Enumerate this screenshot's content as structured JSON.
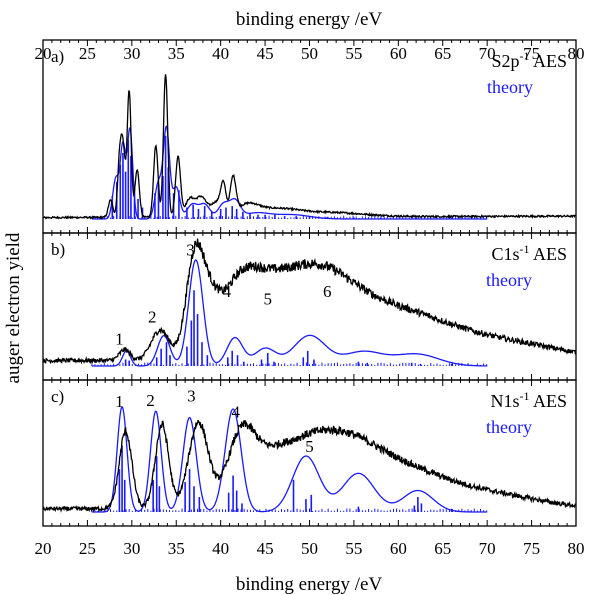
{
  "chart_data": {
    "type": "line",
    "xlabel_top": "binding energy /eV",
    "xlabel_bottom": "binding energy /eV",
    "ylabel": "auger electron yield",
    "xlim": [
      20,
      80
    ],
    "xticks": [
      "20",
      "25",
      "30",
      "35",
      "40",
      "45",
      "50",
      "55",
      "60",
      "65",
      "70",
      "75",
      "80"
    ],
    "colors": {
      "experiment": "#000000",
      "theory": "#1a1aff"
    },
    "grid": false,
    "panels": [
      {
        "label": "a)",
        "legend": {
          "main": "S2p",
          "sup": "-1",
          "suffix": " AES",
          "theory": "theory"
        },
        "ylim": [
          0,
          1.15
        ],
        "experiment": {
          "baseline": {
            "start": 0.01,
            "end": 0.02
          },
          "peaks": [
            [
              27.6,
              0.12,
              0.25
            ],
            [
              28.6,
              0.34,
              0.22
            ],
            [
              29.0,
              0.48,
              0.25
            ],
            [
              29.7,
              0.88,
              0.22
            ],
            [
              30.6,
              0.33,
              0.25
            ],
            [
              32.7,
              0.5,
              0.25
            ],
            [
              33.8,
              1.0,
              0.24
            ],
            [
              35.2,
              0.42,
              0.28
            ],
            [
              36.5,
              0.12,
              0.5
            ],
            [
              37.8,
              0.14,
              0.6
            ],
            [
              39.5,
              0.1,
              0.6
            ],
            [
              40.3,
              0.2,
              0.3
            ],
            [
              41.4,
              0.25,
              0.32
            ],
            [
              43.0,
              0.07,
              1.2
            ],
            [
              46.0,
              0.05,
              2.5
            ],
            [
              52.0,
              0.03,
              4.0
            ]
          ]
        },
        "theory_curve": {
          "range": [
            25.5,
            70
          ],
          "peaks": [
            [
              28.2,
              0.28,
              0.35
            ],
            [
              29.0,
              0.5,
              0.3
            ],
            [
              29.8,
              0.62,
              0.3
            ],
            [
              33.0,
              0.25,
              0.4
            ],
            [
              33.9,
              0.62,
              0.35
            ],
            [
              35.0,
              0.22,
              0.4
            ],
            [
              36.8,
              0.1,
              0.6
            ],
            [
              38.2,
              0.1,
              0.6
            ],
            [
              40.3,
              0.1,
              0.6
            ],
            [
              41.6,
              0.12,
              0.6
            ],
            [
              44.0,
              0.04,
              1.5
            ],
            [
              48.0,
              0.03,
              2.0
            ]
          ]
        },
        "theory_sticks": [
          [
            27.8,
            0.16
          ],
          [
            28.3,
            0.26
          ],
          [
            28.7,
            0.38
          ],
          [
            29.0,
            0.46
          ],
          [
            29.3,
            0.33
          ],
          [
            29.6,
            0.55
          ],
          [
            29.9,
            0.44
          ],
          [
            30.3,
            0.22
          ],
          [
            30.7,
            0.14
          ],
          [
            31.2,
            0.08
          ],
          [
            32.6,
            0.18
          ],
          [
            33.0,
            0.24
          ],
          [
            33.5,
            0.3
          ],
          [
            33.8,
            0.58
          ],
          [
            34.1,
            0.36
          ],
          [
            34.7,
            0.18
          ],
          [
            35.3,
            0.2
          ],
          [
            36.2,
            0.08
          ],
          [
            36.9,
            0.1
          ],
          [
            37.5,
            0.07
          ],
          [
            38.2,
            0.09
          ],
          [
            39.0,
            0.05
          ],
          [
            40.0,
            0.07
          ],
          [
            40.6,
            0.08
          ],
          [
            41.3,
            0.09
          ],
          [
            41.8,
            0.07
          ],
          [
            42.5,
            0.05
          ],
          [
            43.3,
            0.04
          ],
          [
            44.2,
            0.03
          ],
          [
            45.0,
            0.03
          ],
          [
            46.1,
            0.03
          ],
          [
            47.2,
            0.02
          ],
          [
            48.5,
            0.02
          ],
          [
            50.0,
            0.02
          ],
          [
            52.0,
            0.015
          ],
          [
            55.0,
            0.01
          ],
          [
            58.0,
            0.01
          ],
          [
            62.0,
            0.01
          ],
          [
            66.0,
            0.01
          ]
        ],
        "peak_labels": []
      },
      {
        "label": "b)",
        "legend": {
          "main": "C1s",
          "sup": "-1",
          "suffix": " AES",
          "theory": "theory"
        },
        "ylim": [
          0,
          1.1
        ],
        "experiment": {
          "baseline": {
            "start": 0.05,
            "end": 0.06
          },
          "peaks": [
            [
              29.2,
              0.1,
              0.6
            ],
            [
              33.2,
              0.28,
              1.0
            ],
            [
              37.1,
              0.92,
              1.0
            ],
            [
              38.8,
              0.3,
              1.0
            ],
            [
              41.6,
              0.46,
              2.2
            ],
            [
              44.5,
              0.44,
              2.8
            ],
            [
              48.5,
              0.38,
              3.2
            ],
            [
              52.0,
              0.45,
              3.5
            ],
            [
              57.0,
              0.32,
              4.5
            ],
            [
              63.0,
              0.22,
              5.0
            ],
            [
              70.0,
              0.12,
              6.0
            ],
            [
              76.0,
              0.05,
              5.0
            ]
          ]
        },
        "theory_curve": {
          "range": [
            25.5,
            70
          ],
          "peaks": [
            [
              29.4,
              0.14,
              0.45
            ],
            [
              33.6,
              0.28,
              0.7
            ],
            [
              37.2,
              0.98,
              0.8
            ],
            [
              41.6,
              0.26,
              0.9
            ],
            [
              45.0,
              0.16,
              1.2
            ],
            [
              50.0,
              0.28,
              1.8
            ],
            [
              56.0,
              0.13,
              2.2
            ],
            [
              62.0,
              0.11,
              2.5
            ]
          ]
        },
        "theory_sticks": [
          [
            29.3,
            0.06
          ],
          [
            29.7,
            0.05
          ],
          [
            32.8,
            0.08
          ],
          [
            33.3,
            0.16
          ],
          [
            33.9,
            0.22
          ],
          [
            34.3,
            0.1
          ],
          [
            36.2,
            0.18
          ],
          [
            36.7,
            0.42
          ],
          [
            37.0,
            0.7
          ],
          [
            37.4,
            0.48
          ],
          [
            37.9,
            0.22
          ],
          [
            38.5,
            0.1
          ],
          [
            40.8,
            0.08
          ],
          [
            41.3,
            0.14
          ],
          [
            41.9,
            0.1
          ],
          [
            42.6,
            0.04
          ],
          [
            44.6,
            0.06
          ],
          [
            45.3,
            0.12
          ],
          [
            46.0,
            0.04
          ],
          [
            49.3,
            0.08
          ],
          [
            49.8,
            0.14
          ],
          [
            50.5,
            0.06
          ],
          [
            55.5,
            0.04
          ],
          [
            56.5,
            0.03
          ],
          [
            61.5,
            0.03
          ],
          [
            62.5,
            0.02
          ],
          [
            66.0,
            0.02
          ]
        ],
        "peak_labels": [
          {
            "text": "1",
            "x": 28.6,
            "y": 0.2
          },
          {
            "text": "2",
            "x": 32.3,
            "y": 0.4
          },
          {
            "text": "3",
            "x": 36.6,
            "y": 1.02
          },
          {
            "text": "4",
            "x": 40.7,
            "y": 0.64
          },
          {
            "text": "5",
            "x": 45.3,
            "y": 0.57
          },
          {
            "text": "6",
            "x": 52.0,
            "y": 0.64
          }
        ]
      },
      {
        "label": "c)",
        "legend": {
          "main": "N1s",
          "sup": "-1",
          "suffix": " AES",
          "theory": "theory"
        },
        "ylim": [
          0,
          1.1
        ],
        "experiment": {
          "baseline": {
            "start": 0.03,
            "end": 0.04
          },
          "peaks": [
            [
              29.3,
              0.72,
              0.7
            ],
            [
              33.4,
              0.78,
              0.75
            ],
            [
              37.5,
              0.8,
              1.1
            ],
            [
              42.3,
              0.66,
              1.6
            ],
            [
              45.5,
              0.32,
              2.0
            ],
            [
              49.0,
              0.4,
              2.6
            ],
            [
              53.0,
              0.42,
              3.0
            ],
            [
              57.0,
              0.32,
              3.5
            ],
            [
              62.0,
              0.22,
              4.0
            ],
            [
              68.0,
              0.12,
              4.5
            ],
            [
              74.0,
              0.05,
              4.0
            ]
          ]
        },
        "theory_curve": {
          "range": [
            25.5,
            70
          ],
          "peaks": [
            [
              28.9,
              0.98,
              0.55
            ],
            [
              32.7,
              0.94,
              0.6
            ],
            [
              36.5,
              0.88,
              0.75
            ],
            [
              41.4,
              0.96,
              0.9
            ],
            [
              49.6,
              0.52,
              1.5
            ],
            [
              55.5,
              0.36,
              1.8
            ],
            [
              62.2,
              0.2,
              1.7
            ]
          ]
        },
        "theory_sticks": [
          [
            28.6,
            0.4
          ],
          [
            28.9,
            0.62
          ],
          [
            29.2,
            0.3
          ],
          [
            32.4,
            0.3
          ],
          [
            32.8,
            0.52
          ],
          [
            33.1,
            0.24
          ],
          [
            36.0,
            0.28
          ],
          [
            36.5,
            0.4
          ],
          [
            37.0,
            0.24
          ],
          [
            37.6,
            0.14
          ],
          [
            40.9,
            0.18
          ],
          [
            41.4,
            0.34
          ],
          [
            41.8,
            0.2
          ],
          [
            42.4,
            0.08
          ],
          [
            48.2,
            0.3
          ],
          [
            49.6,
            0.12
          ],
          [
            50.2,
            0.16
          ],
          [
            55.5,
            0.05
          ],
          [
            61.8,
            0.06
          ],
          [
            62.2,
            0.14
          ],
          [
            62.6,
            0.08
          ],
          [
            66.0,
            0.03
          ]
        ],
        "peak_labels": [
          {
            "text": "1",
            "x": 28.6,
            "y": 0.98
          },
          {
            "text": "2",
            "x": 32.1,
            "y": 0.99
          },
          {
            "text": "3",
            "x": 36.7,
            "y": 1.03
          },
          {
            "text": "4",
            "x": 41.7,
            "y": 0.88
          },
          {
            "text": "5",
            "x": 50.0,
            "y": 0.56
          }
        ]
      }
    ]
  }
}
